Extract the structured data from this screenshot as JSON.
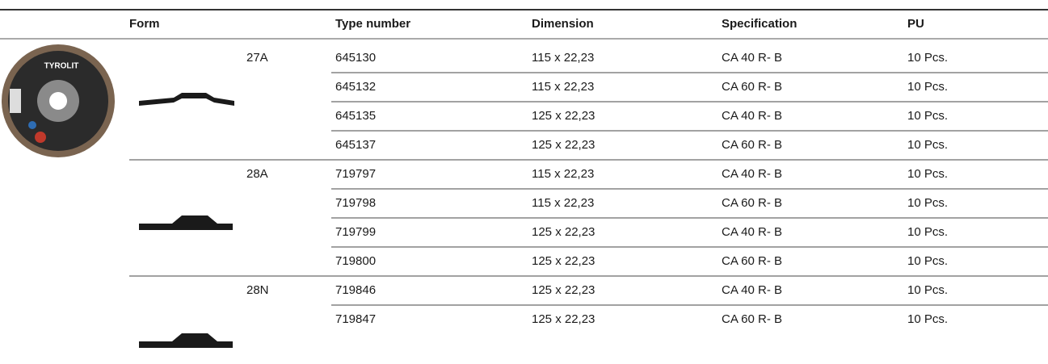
{
  "header": [
    "Form",
    "Type number",
    "Dimension",
    "Specification",
    "PU"
  ],
  "image_brand": "TYROLIT",
  "groups": [
    {
      "form": "27A",
      "rows": [
        [
          "645130",
          "115 x 22,23",
          "CA 40 R- B",
          "10 Pcs."
        ],
        [
          "645132",
          "115 x 22,23",
          "CA 60 R- B",
          "10 Pcs."
        ],
        [
          "645135",
          "125 x 22,23",
          "CA 40 R- B",
          "10 Pcs."
        ],
        [
          "645137",
          "125 x 22,23",
          "CA 60 R- B",
          "10 Pcs."
        ]
      ]
    },
    {
      "form": "28A",
      "rows": [
        [
          "719797",
          "115 x 22,23",
          "CA 40 R- B",
          "10 Pcs."
        ],
        [
          "719798",
          "115 x 22,23",
          "CA 60 R- B",
          "10 Pcs."
        ],
        [
          "719799",
          "125 x 22,23",
          "CA 40 R- B",
          "10 Pcs."
        ],
        [
          "719800",
          "125 x 22,23",
          "CA 60 R- B",
          "10 Pcs."
        ]
      ]
    },
    {
      "form": "28N",
      "rows": [
        [
          "719846",
          "125 x 22,23",
          "CA 40 R- B",
          "10 Pcs."
        ],
        [
          "719847",
          "125 x 22,23",
          "CA 60 R- B",
          "10 Pcs."
        ]
      ]
    }
  ]
}
